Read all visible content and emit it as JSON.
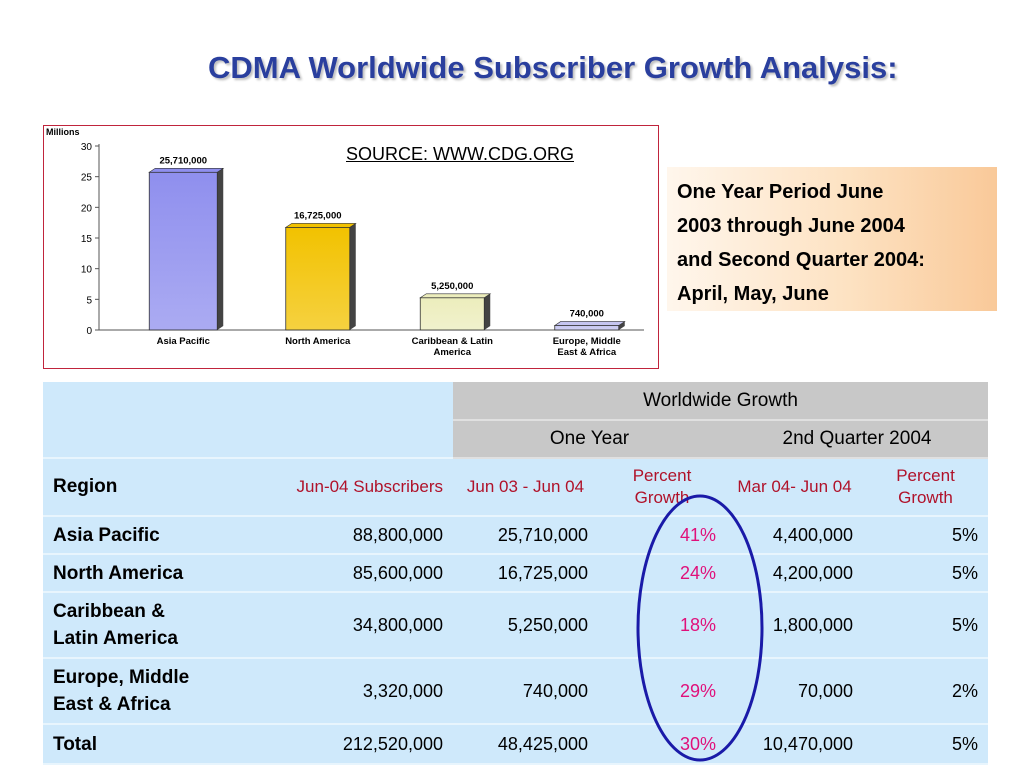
{
  "title": "CDMA Worldwide Subscriber Growth Analysis:",
  "source": "SOURCE: WWW.CDG.ORG",
  "note": {
    "lines": [
      "One Year Period June",
      "2003 through June 2004",
      "and Second Quarter 2004:",
      "April, May, June"
    ]
  },
  "chart_data": {
    "type": "bar",
    "title": "",
    "ylabel": "Millions",
    "xlabel": "",
    "ylim": [
      0,
      30
    ],
    "yticks": [
      0,
      5,
      10,
      15,
      20,
      25,
      30
    ],
    "categories": [
      "Asia Pacific",
      "North America",
      "Caribbean & Latin America",
      "Europe, Middle East & Africa"
    ],
    "category_lines": [
      [
        "Asia Pacific"
      ],
      [
        "North America"
      ],
      [
        "Caribbean & Latin",
        "America"
      ],
      [
        "Europe, Middle",
        "East & Africa"
      ]
    ],
    "values": [
      25.71,
      16.725,
      5.25,
      0.74
    ],
    "value_labels": [
      "25,710,000",
      "16,725,000",
      "5,250,000",
      "740,000"
    ],
    "colors": [
      "#8f8fee",
      "#f2c200",
      "#ecedbc",
      "#c5c5f0"
    ],
    "grid": false,
    "legend": "none"
  },
  "table": {
    "group_header": "Worldwide Growth",
    "subgroups": [
      "One Year",
      "2nd Quarter 2004"
    ],
    "region_label": "Region",
    "columns": [
      "Jun-04 Subscribers",
      "Jun 03 - Jun 04",
      "Percent Growth",
      "Mar 04- Jun 04",
      "Percent Growth"
    ],
    "rows": [
      {
        "region": "Asia Pacific",
        "subs": "88,800,000",
        "one_year": "25,710,000",
        "one_year_pct": "41%",
        "q2": "4,400,000",
        "q2_pct": "5%"
      },
      {
        "region": "North America",
        "subs": "85,600,000",
        "one_year": "16,725,000",
        "one_year_pct": "24%",
        "q2": "4,200,000",
        "q2_pct": "5%"
      },
      {
        "region": "Caribbean & Latin America",
        "subs": "34,800,000",
        "one_year": "5,250,000",
        "one_year_pct": "18%",
        "q2": "1,800,000",
        "q2_pct": "5%"
      },
      {
        "region": "Europe, Middle East & Africa",
        "subs": "3,320,000",
        "one_year": "740,000",
        "one_year_pct": "29%",
        "q2": "70,000",
        "q2_pct": "2%"
      },
      {
        "region": "Total",
        "subs": "212,520,000",
        "one_year": "48,425,000",
        "one_year_pct": "30%",
        "q2": "10,470,000",
        "q2_pct": "5%"
      }
    ]
  },
  "colors": {
    "title": "#2a3f9e",
    "table_bg": "#cfe9fb",
    "header_bg": "#c8c8c8",
    "label_red": "#b0122a",
    "percent": "#e0107a",
    "oval": "#1a1aa8"
  }
}
